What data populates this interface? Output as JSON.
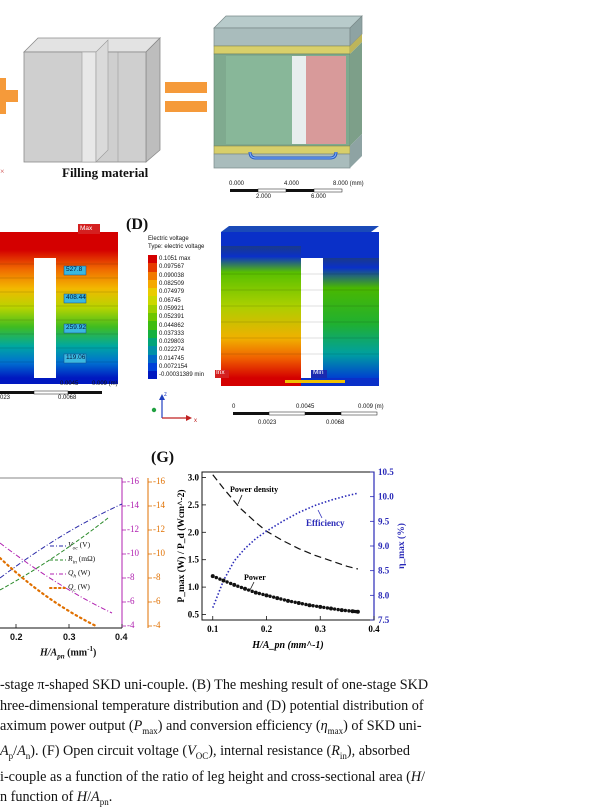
{
  "top": {
    "filling_material_label": "Filling material",
    "left_edge_mark": "×",
    "scale_top": [
      "0.000",
      "4.000",
      "8.000 (mm)"
    ],
    "scale_bottom": [
      "2.000",
      "6.000"
    ]
  },
  "panel_c": {
    "max_tag": "Max",
    "value_tags": [
      "527.8",
      "408.44",
      "259.92",
      "119.06"
    ],
    "scale_top": [
      "0.0045",
      "0.009 (m)"
    ],
    "scale_bottom": [
      "023",
      "0.0068"
    ]
  },
  "panel_d": {
    "label": "(D)",
    "legend_title_1": "Electric voltage",
    "legend_title_2": "Type: electric voltage",
    "legend_values": [
      "0.1051 max",
      "0.097567",
      "0.090038",
      "0.082509",
      "0.074979",
      "0.06745",
      "0.059921",
      "0.052391",
      "0.044862",
      "0.037333",
      "0.029803",
      "0.022274",
      "0.014745",
      "0.0072154",
      "-0.00031389 min"
    ],
    "legend_colors": [
      "#d40000",
      "#e63a00",
      "#f27a00",
      "#f5a800",
      "#e9cc00",
      "#cbd800",
      "#9fd000",
      "#6ec600",
      "#3ebc10",
      "#14b040",
      "#00a47a",
      "#0090a8",
      "#0068c8",
      "#0040d8",
      "#0018c0"
    ],
    "max_tag": "Max",
    "min_tag": "Min",
    "left_min_tag": "Inx",
    "axis_z": "z",
    "axis_x": "x",
    "axis_y": "y",
    "scale_top": [
      "0",
      "0.0045",
      "0.009 (m)"
    ],
    "scale_bottom": [
      "0.0023",
      "0.0068"
    ]
  },
  "panel_f": {
    "legend": [
      {
        "label": "V",
        "sub": "oc",
        "unit": " (V)",
        "color": "#2a2aa8"
      },
      {
        "label": "R",
        "sub": "in",
        "unit": " (mΩ)",
        "color": "#2a8a2a"
      },
      {
        "label": "Q",
        "sub": "h",
        "unit": " (W)",
        "color": "#b020b0"
      },
      {
        "label": "Q",
        "sub": "c",
        "unit": " (W)",
        "color": "#e07000"
      }
    ],
    "x_ticks": [
      "0.2",
      "0.3",
      "0.4"
    ],
    "x_label": "H/A",
    "x_label_sub": "pn",
    "x_label_unit": " (mm",
    "x_label_sup": "-1",
    "x_label_end": ")",
    "y_right1_ticks": [
      "16",
      "14",
      "12",
      "10",
      "8",
      "6",
      "4"
    ],
    "y_right2_ticks": [
      "16",
      "14",
      "12",
      "10",
      "8",
      "6",
      "4"
    ]
  },
  "chart_data": {
    "type": "line",
    "title": "",
    "xlabel": "H/A_pn (mm^-1)",
    "ylabel": "P_max (W) / P_d (Wcm^-2)",
    "ylabel_right": "η_max (%)",
    "xlim": [
      0.08,
      0.4
    ],
    "ylim": [
      0.4,
      3.1
    ],
    "ylim_right": [
      7.5,
      10.5
    ],
    "x_ticks": [
      0.1,
      0.2,
      0.3,
      0.4
    ],
    "y_ticks": [
      0.5,
      1.0,
      1.5,
      2.0,
      2.5,
      3.0
    ],
    "y_right_ticks": [
      7.5,
      8.0,
      8.5,
      9.0,
      9.5,
      10.0,
      10.5
    ],
    "panel_label": "(G)",
    "series": [
      {
        "name": "Power density",
        "axis": "left",
        "style": "dashed",
        "color": "#111111",
        "x": [
          0.1,
          0.12,
          0.15,
          0.18,
          0.2,
          0.23,
          0.26,
          0.29,
          0.32,
          0.35,
          0.37
        ],
        "values": [
          3.05,
          2.8,
          2.45,
          2.18,
          2.02,
          1.85,
          1.7,
          1.58,
          1.48,
          1.38,
          1.33
        ]
      },
      {
        "name": "Efficiency",
        "axis": "right",
        "style": "dotted",
        "color": "#2a2ab8",
        "x": [
          0.1,
          0.12,
          0.14,
          0.16,
          0.18,
          0.2,
          0.23,
          0.26,
          0.29,
          0.32,
          0.35,
          0.37
        ],
        "values": [
          7.75,
          8.3,
          8.7,
          8.95,
          9.15,
          9.3,
          9.5,
          9.68,
          9.82,
          9.93,
          10.02,
          10.07
        ]
      },
      {
        "name": "Power",
        "axis": "left",
        "style": "dots",
        "color": "#111111",
        "x": [
          0.1,
          0.12,
          0.14,
          0.16,
          0.18,
          0.2,
          0.22,
          0.24,
          0.26,
          0.28,
          0.3,
          0.32,
          0.34,
          0.36,
          0.37
        ],
        "values": [
          1.2,
          1.12,
          1.04,
          0.97,
          0.9,
          0.85,
          0.8,
          0.75,
          0.71,
          0.67,
          0.64,
          0.61,
          0.58,
          0.56,
          0.55
        ]
      }
    ],
    "annotations": [
      "Power density",
      "Efficiency",
      "Power"
    ]
  },
  "caption": {
    "line1_a": "-stage π-shaped SKD uni-couple. (B) The meshing result of one-stage SKD",
    "line2_a": "hree-dimensional temperature distribution and (D) potential distribution of",
    "line3_a": "aximum power output (",
    "line3_P": "P",
    "line3_Psub": "max",
    "line3_b": ") and conversion efficiency (",
    "line3_eta": "η",
    "line3_etasub": "max",
    "line3_c": ") of SKD uni-",
    "line4_a": "A",
    "line4_Asub": "p",
    "line4_b": "/",
    "line4_An": "A",
    "line4_Ansub": "n",
    "line4_c": "). (F) Open circuit voltage (",
    "line4_V": "V",
    "line4_Vsub": "OC",
    "line4_d": "), internal resistance (",
    "line4_R": "R",
    "line4_Rsub": "in",
    "line4_e": "), absorbed",
    "line5_a": "i-couple as a function of the ratio of leg height and cross-sectional area (",
    "line5_H": "H",
    "line5_b": "/",
    "line6_a": "n function of ",
    "line6_H": "H",
    "line6_b": "/",
    "line6_A": "A",
    "line6_Asub": "pn",
    "line6_c": "."
  }
}
